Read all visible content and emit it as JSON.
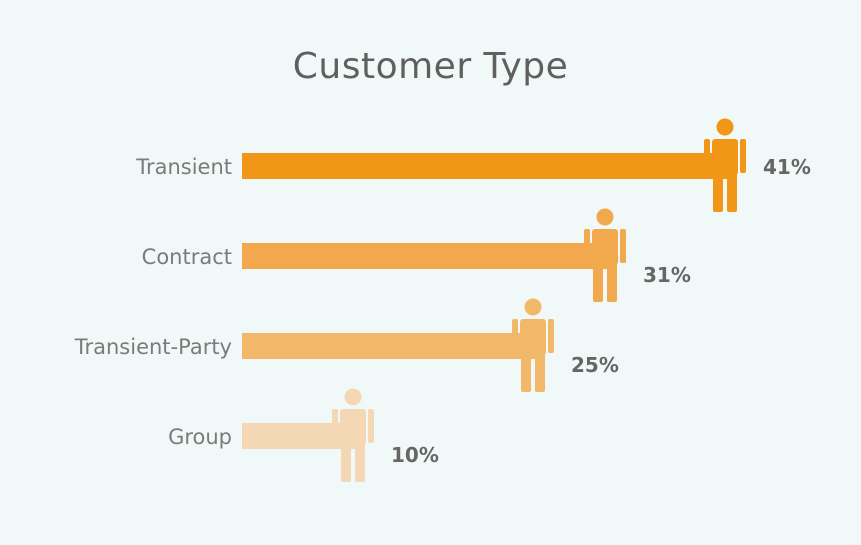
{
  "colors": {
    "background": "#f1f8f8",
    "series": [
      "#f29618",
      "#f2a84c",
      "#f2b86a",
      "#f4d8b6"
    ]
  },
  "chart_data": {
    "type": "bar",
    "orientation": "horizontal",
    "title": "Customer Type",
    "categories": [
      "Transient",
      "Contract",
      "Transient-Party",
      "Group"
    ],
    "values": [
      41,
      31,
      25,
      10
    ],
    "value_labels": [
      "41%",
      "31%",
      "25%",
      "10%"
    ],
    "unit": "%",
    "marker_icon": "person-icon",
    "grid": false,
    "legend": "none"
  }
}
